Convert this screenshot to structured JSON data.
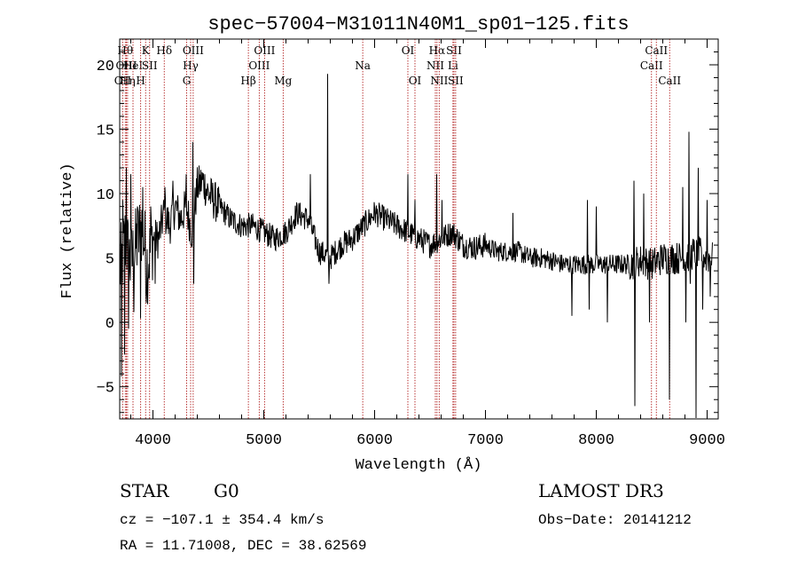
{
  "chart_data": {
    "type": "line",
    "title": "spec−57004−M31011N40M1_sp01−125.fits",
    "xlabel": "Wavelength (Å)",
    "ylabel": "Flux (relative)",
    "xlim": [
      3700,
      9100
    ],
    "ylim": [
      -7.5,
      22
    ],
    "x_ticks": [
      4000,
      5000,
      6000,
      7000,
      8000,
      9000
    ],
    "x_tick_labels": [
      "4000",
      "5000",
      "6000",
      "7000",
      "8000",
      "9000"
    ],
    "y_ticks": [
      -5,
      0,
      5,
      10,
      15,
      20
    ],
    "y_tick_labels": [
      "−5",
      "0",
      "5",
      "10",
      "15",
      "20"
    ],
    "spectrum_anchors": [
      [
        3700,
        4.0
      ],
      [
        3750,
        6.5
      ],
      [
        3800,
        4.5
      ],
      [
        3850,
        6.0
      ],
      [
        3900,
        7.5
      ],
      [
        3950,
        4.5
      ],
      [
        4000,
        6.5
      ],
      [
        4050,
        6.5
      ],
      [
        4100,
        8.5
      ],
      [
        4150,
        7.5
      ],
      [
        4200,
        9.0
      ],
      [
        4250,
        8.0
      ],
      [
        4300,
        9.0
      ],
      [
        4350,
        7.0
      ],
      [
        4400,
        10.5
      ],
      [
        4450,
        11.0
      ],
      [
        4500,
        10.0
      ],
      [
        4550,
        9.5
      ],
      [
        4600,
        9.0
      ],
      [
        4700,
        8.0
      ],
      [
        4800,
        7.5
      ],
      [
        4900,
        7.5
      ],
      [
        5000,
        7.0
      ],
      [
        5100,
        6.5
      ],
      [
        5200,
        7.0
      ],
      [
        5300,
        8.5
      ],
      [
        5400,
        8.0
      ],
      [
        5500,
        5.5
      ],
      [
        5600,
        5.0
      ],
      [
        5700,
        6.0
      ],
      [
        5800,
        6.5
      ],
      [
        5900,
        7.5
      ],
      [
        6000,
        8.5
      ],
      [
        6100,
        8.0
      ],
      [
        6200,
        7.5
      ],
      [
        6300,
        7.0
      ],
      [
        6400,
        6.5
      ],
      [
        6500,
        6.0
      ],
      [
        6600,
        6.5
      ],
      [
        6700,
        7.0
      ],
      [
        6800,
        6.0
      ],
      [
        6900,
        5.8
      ],
      [
        7000,
        6.0
      ],
      [
        7100,
        5.5
      ],
      [
        7200,
        5.5
      ],
      [
        7300,
        5.5
      ],
      [
        7400,
        5.0
      ],
      [
        7500,
        5.0
      ],
      [
        7600,
        4.8
      ],
      [
        7700,
        4.5
      ],
      [
        7800,
        4.5
      ],
      [
        7900,
        4.5
      ],
      [
        8000,
        4.5
      ],
      [
        8100,
        4.5
      ],
      [
        8200,
        4.5
      ],
      [
        8300,
        4.5
      ],
      [
        8400,
        4.8
      ],
      [
        8500,
        4.5
      ],
      [
        8600,
        5.0
      ],
      [
        8700,
        5.0
      ],
      [
        8800,
        5.0
      ],
      [
        8900,
        5.5
      ],
      [
        9000,
        5.0
      ],
      [
        9100,
        5.0
      ]
    ],
    "spikes": [
      [
        3715,
        -4.2
      ],
      [
        3730,
        9.5
      ],
      [
        3745,
        -2.5
      ],
      [
        3760,
        12.0
      ],
      [
        3780,
        -0.5
      ],
      [
        3800,
        11.5
      ],
      [
        3830,
        0.8
      ],
      [
        3860,
        9.0
      ],
      [
        3890,
        0.3
      ],
      [
        3910,
        10.5
      ],
      [
        3940,
        1.5
      ],
      [
        3980,
        9.0
      ],
      [
        4020,
        3.0
      ],
      [
        4110,
        10.5
      ],
      [
        4180,
        11.0
      ],
      [
        4300,
        11.5
      ],
      [
        4360,
        14.0
      ],
      [
        4370,
        3.0
      ],
      [
        5420,
        11.5
      ],
      [
        5577,
        19.3
      ],
      [
        5590,
        3.0
      ],
      [
        6300,
        11.5
      ],
      [
        6365,
        9.5
      ],
      [
        6560,
        11.5
      ],
      [
        6610,
        9.5
      ],
      [
        7250,
        8.5
      ],
      [
        7780,
        0.5
      ],
      [
        7920,
        9.5
      ],
      [
        7935,
        1.0
      ],
      [
        8000,
        9.0
      ],
      [
        8100,
        0.0
      ],
      [
        8340,
        11.0
      ],
      [
        8350,
        -6.5
      ],
      [
        8430,
        10.0
      ],
      [
        8480,
        0.0
      ],
      [
        8660,
        -6.0
      ],
      [
        8780,
        10.5
      ],
      [
        8810,
        0.0
      ],
      [
        8835,
        14.8
      ],
      [
        8850,
        3.0
      ],
      [
        8900,
        -7.5
      ],
      [
        8920,
        12.0
      ],
      [
        8960,
        1.0
      ],
      [
        9000,
        9.5
      ],
      [
        9030,
        2.0
      ]
    ],
    "line_markers": [
      {
        "wave": 3727,
        "label": "OII",
        "row": 2
      },
      {
        "wave": 3750,
        "label": "Hθ",
        "row": 0
      },
      {
        "wave": 3760,
        "label": "OIII",
        "row": 1
      },
      {
        "wave": 3771,
        "label": "Hη",
        "row": 2
      },
      {
        "wave": 3820,
        "label": "HeI",
        "row": 1
      },
      {
        "wave": 3889,
        "label": "H",
        "row": 2
      },
      {
        "wave": 3934,
        "label": "K",
        "row": 0
      },
      {
        "wave": 3970,
        "label": "SII",
        "row": 1
      },
      {
        "wave": 4102,
        "label": "Hδ",
        "row": 0
      },
      {
        "wave": 4304,
        "label": "G",
        "row": 2
      },
      {
        "wave": 4340,
        "label": "Hγ",
        "row": 1
      },
      {
        "wave": 4363,
        "label": "OIII",
        "row": 0
      },
      {
        "wave": 4861,
        "label": "Hβ",
        "row": 2
      },
      {
        "wave": 4959,
        "label": "OIII",
        "row": 1
      },
      {
        "wave": 5007,
        "label": "OIII",
        "row": 0
      },
      {
        "wave": 5175,
        "label": "Mg",
        "row": 2
      },
      {
        "wave": 5893,
        "label": "Na",
        "row": 1
      },
      {
        "wave": 6300,
        "label": "OI",
        "row": 0
      },
      {
        "wave": 6364,
        "label": "OI",
        "row": 2
      },
      {
        "wave": 6548,
        "label": "NII",
        "row": 1
      },
      {
        "wave": 6563,
        "label": "Hα",
        "row": 0
      },
      {
        "wave": 6583,
        "label": "NII",
        "row": 2
      },
      {
        "wave": 6707,
        "label": "Li",
        "row": 1
      },
      {
        "wave": 6716,
        "label": "SII",
        "row": 0
      },
      {
        "wave": 6731,
        "label": "SII",
        "row": 2
      },
      {
        "wave": 8498,
        "label": "CaII",
        "row": 1
      },
      {
        "wave": 8542,
        "label": "CaII",
        "row": 0
      },
      {
        "wave": 8662,
        "label": "CaII",
        "row": 2
      }
    ]
  },
  "info": {
    "object_type": "STAR",
    "subclass": "G0",
    "survey": "LAMOST DR3",
    "redshift_line": "cz = −107.1 ± 354.4 km/s",
    "obs_date_line": "Obs−Date: 20141212",
    "coords_line": "RA =  11.71008, DEC =  38.62569"
  },
  "colors": {
    "axis": "#000000",
    "spectrum": "#000000",
    "marker_line": "#b22222",
    "background": "#ffffff"
  }
}
